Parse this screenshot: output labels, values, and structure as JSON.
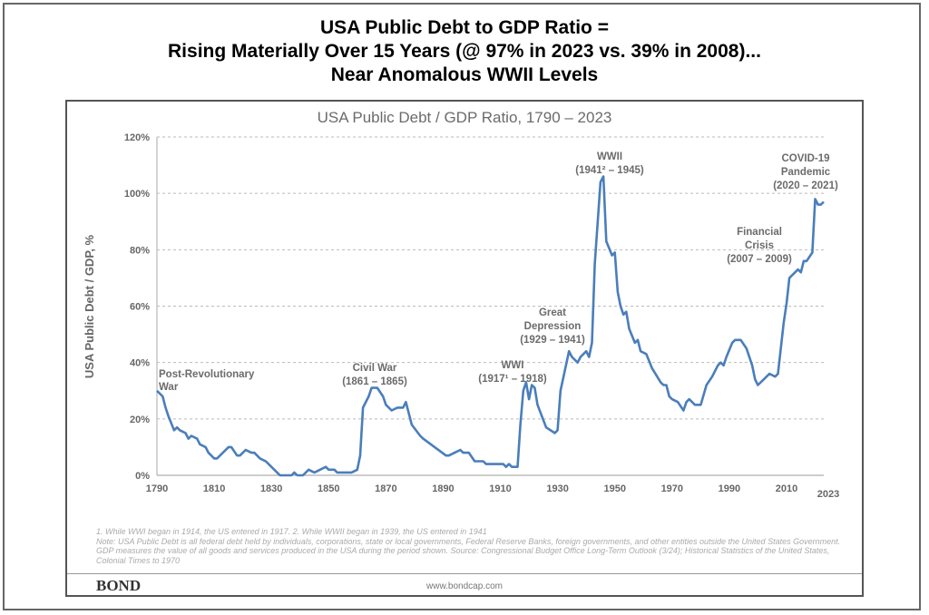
{
  "title_lines": [
    "USA Public Debt to GDP Ratio =",
    "Rising Materially Over 15 Years (@ 97% in 2023 vs. 39% in 2008)...",
    "Near Anomalous WWII Levels"
  ],
  "footnotes": [
    "1. While WWI began in 1914, the US entered in 1917. 2. While WWII began in 1939, the US entered in 1941",
    "Note: USA Public Debt is all federal debt held by individuals, corporations, state or local governments, Federal Reserve Banks, foreign governments, and other entities outside the United States Government. GDP measures the value of all goods and services produced in the USA during the period shown. Source: Congressional Budget Office Long-Term Outlook (3/24); Historical Statistics of the United States, Colonial Times to 1970"
  ],
  "logo": "BOND",
  "url": "www.bondcap.com",
  "colors": {
    "line": "#4a7ebb",
    "grid": "#bbbbbb",
    "text": "#6b6b6b"
  },
  "chart_data": {
    "type": "line",
    "title": "USA Public Debt / GDP Ratio, 1790 – 2023",
    "xlabel": "",
    "ylabel": "USA Public Debt / GDP, %",
    "xlim": [
      1790,
      2023
    ],
    "ylim": [
      0,
      120
    ],
    "x_ticks": [
      1790,
      1810,
      1830,
      1850,
      1870,
      1890,
      1910,
      1930,
      1950,
      1970,
      1990,
      2010,
      2023
    ],
    "y_ticks": [
      0,
      20,
      40,
      60,
      80,
      100,
      120
    ],
    "y_tick_labels": [
      "0%",
      "20%",
      "40%",
      "60%",
      "80%",
      "100%",
      "120%"
    ],
    "grid": "horizontal dashed",
    "annotations": [
      {
        "lines": [
          "Post-Revolutionary",
          "War"
        ]
      },
      {
        "lines": [
          "Civil War",
          "(1861 – 1865)"
        ]
      },
      {
        "lines": [
          "WWI",
          "(1917¹ – 1918)"
        ]
      },
      {
        "lines": [
          "Great",
          "Depression",
          "(1929 – 1941)"
        ]
      },
      {
        "lines": [
          "WWII",
          "(1941² – 1945)"
        ]
      },
      {
        "lines": [
          "Financial",
          "Crisis",
          "(2007 – 2009)"
        ]
      },
      {
        "lines": [
          "COVID-19",
          "Pandemic",
          "(2020 – 2021)"
        ]
      }
    ],
    "series": [
      {
        "name": "USA Public Debt / GDP",
        "points": [
          [
            1790,
            30
          ],
          [
            1792,
            28
          ],
          [
            1793,
            24
          ],
          [
            1794,
            21
          ],
          [
            1796,
            16
          ],
          [
            1797,
            17
          ],
          [
            1798,
            16
          ],
          [
            1800,
            15
          ],
          [
            1801,
            13
          ],
          [
            1802,
            14
          ],
          [
            1804,
            13
          ],
          [
            1805,
            11
          ],
          [
            1807,
            10
          ],
          [
            1808,
            8
          ],
          [
            1810,
            6
          ],
          [
            1811,
            6
          ],
          [
            1815,
            10
          ],
          [
            1816,
            10
          ],
          [
            1818,
            7
          ],
          [
            1819,
            7
          ],
          [
            1821,
            9
          ],
          [
            1823,
            8
          ],
          [
            1824,
            8
          ],
          [
            1826,
            6
          ],
          [
            1828,
            5
          ],
          [
            1832,
            1
          ],
          [
            1833,
            0
          ],
          [
            1837,
            0
          ],
          [
            1838,
            1
          ],
          [
            1839,
            0
          ],
          [
            1841,
            0
          ],
          [
            1843,
            2
          ],
          [
            1845,
            1
          ],
          [
            1847,
            2
          ],
          [
            1849,
            3
          ],
          [
            1850,
            2
          ],
          [
            1852,
            2
          ],
          [
            1853,
            1
          ],
          [
            1858,
            1
          ],
          [
            1860,
            2
          ],
          [
            1861,
            7
          ],
          [
            1862,
            24
          ],
          [
            1864,
            28
          ],
          [
            1865,
            31
          ],
          [
            1867,
            31
          ],
          [
            1869,
            28
          ],
          [
            1870,
            25
          ],
          [
            1872,
            23
          ],
          [
            1874,
            24
          ],
          [
            1876,
            24
          ],
          [
            1877,
            26
          ],
          [
            1879,
            18
          ],
          [
            1882,
            14
          ],
          [
            1883,
            13
          ],
          [
            1891,
            7
          ],
          [
            1892,
            7
          ],
          [
            1894,
            8
          ],
          [
            1896,
            9
          ],
          [
            1897,
            8
          ],
          [
            1899,
            8
          ],
          [
            1901,
            5
          ],
          [
            1904,
            5
          ],
          [
            1905,
            4
          ],
          [
            1911,
            4
          ],
          [
            1912,
            3
          ],
          [
            1913,
            4
          ],
          [
            1914,
            3
          ],
          [
            1916,
            3
          ],
          [
            1917,
            18
          ],
          [
            1918,
            30
          ],
          [
            1919,
            33
          ],
          [
            1920,
            27
          ],
          [
            1921,
            32
          ],
          [
            1922,
            31
          ],
          [
            1923,
            25
          ],
          [
            1926,
            17
          ],
          [
            1929,
            15
          ],
          [
            1930,
            16
          ],
          [
            1931,
            30
          ],
          [
            1934,
            44
          ],
          [
            1935,
            42
          ],
          [
            1937,
            40
          ],
          [
            1938,
            42
          ],
          [
            1940,
            44
          ],
          [
            1941,
            42
          ],
          [
            1942,
            47
          ],
          [
            1943,
            75
          ],
          [
            1945,
            104
          ],
          [
            1946,
            106
          ],
          [
            1947,
            83
          ],
          [
            1949,
            78
          ],
          [
            1950,
            79
          ],
          [
            1951,
            65
          ],
          [
            1952,
            60
          ],
          [
            1953,
            57
          ],
          [
            1954,
            58
          ],
          [
            1955,
            52
          ],
          [
            1957,
            47
          ],
          [
            1958,
            48
          ],
          [
            1959,
            44
          ],
          [
            1961,
            43
          ],
          [
            1963,
            38
          ],
          [
            1966,
            33
          ],
          [
            1967,
            32
          ],
          [
            1968,
            32
          ],
          [
            1969,
            28
          ],
          [
            1970,
            27
          ],
          [
            1972,
            26
          ],
          [
            1974,
            23
          ],
          [
            1975,
            26
          ],
          [
            1976,
            27
          ],
          [
            1978,
            25
          ],
          [
            1980,
            25
          ],
          [
            1982,
            32
          ],
          [
            1984,
            35
          ],
          [
            1986,
            39
          ],
          [
            1987,
            40
          ],
          [
            1988,
            39
          ],
          [
            1989,
            42
          ],
          [
            1991,
            47
          ],
          [
            1992,
            48
          ],
          [
            1994,
            48
          ],
          [
            1996,
            45
          ],
          [
            1998,
            39
          ],
          [
            1999,
            34
          ],
          [
            2000,
            32
          ],
          [
            2002,
            34
          ],
          [
            2004,
            36
          ],
          [
            2006,
            35
          ],
          [
            2007,
            36
          ],
          [
            2009,
            54
          ],
          [
            2010,
            61
          ],
          [
            2011,
            70
          ],
          [
            2014,
            73
          ],
          [
            2015,
            72
          ],
          [
            2016,
            76
          ],
          [
            2017,
            76
          ],
          [
            2019,
            79
          ],
          [
            2020,
            98
          ],
          [
            2021,
            96
          ],
          [
            2022,
            96
          ],
          [
            2023,
            97
          ]
        ]
      }
    ]
  }
}
